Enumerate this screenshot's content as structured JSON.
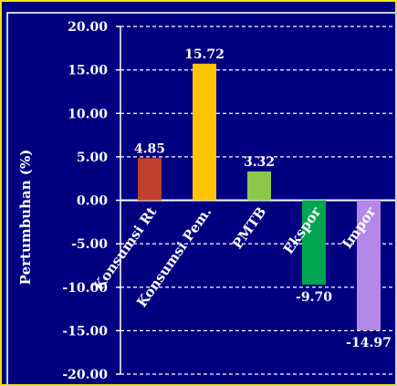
{
  "colors": {
    "background": "#000080",
    "frame": "#F2E600",
    "plot_border": "#C8D2E6",
    "text": "#FFFFFF",
    "gridline": "#FFFFFF"
  },
  "chart_data": {
    "type": "bar",
    "title": "",
    "xlabel": "",
    "ylabel": "Pertumbuhan (%)",
    "ylim": [
      -20,
      20
    ],
    "yticks": [
      "20.00",
      "15.00",
      "10.00",
      "5.00",
      "0.00",
      "-5.00",
      "-10.00",
      "-15.00",
      "-20.00"
    ],
    "grid": true,
    "categories": [
      "Konsumsi Rt",
      "Konsumsi Pem.",
      "PMTB",
      "Ekspor",
      "Impor"
    ],
    "values": [
      4.85,
      15.72,
      3.32,
      -9.7,
      -14.97
    ],
    "value_labels": [
      "4.85",
      "15.72",
      "3.32",
      "-9.70",
      "-14.97"
    ],
    "bar_colors": [
      "#C0402F",
      "#FFC400",
      "#8CC84B",
      "#00A651",
      "#B388E8"
    ]
  }
}
